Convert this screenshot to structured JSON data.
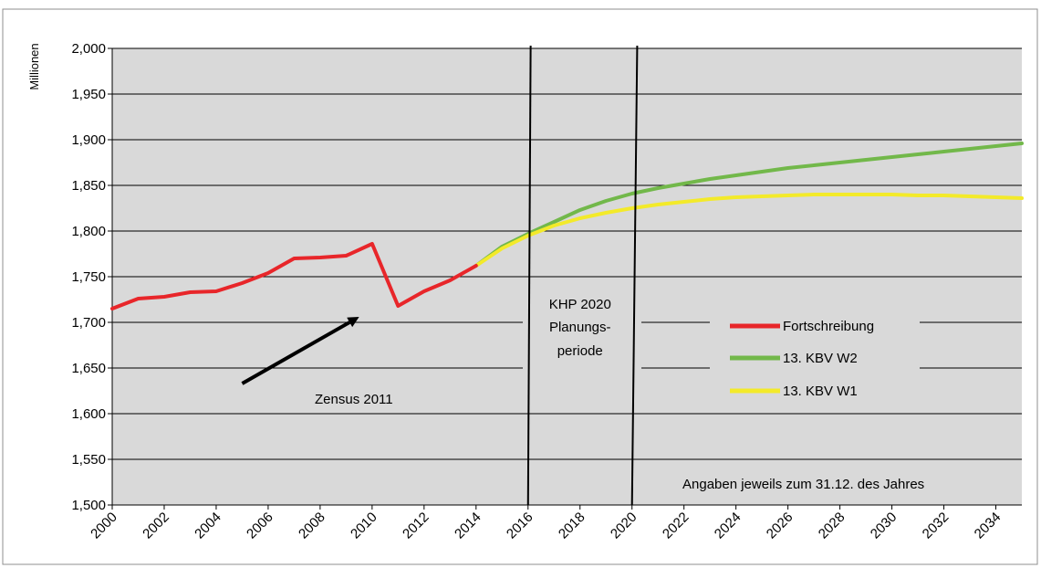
{
  "chart_data": {
    "type": "line",
    "title": "",
    "xlabel": "",
    "ylabel": "Millionen",
    "xlim": [
      2000,
      2035
    ],
    "ylim": [
      1.5,
      2.0
    ],
    "x_ticks": [
      "2000",
      "2002",
      "2004",
      "2006",
      "2008",
      "2010",
      "2012",
      "2014",
      "2016",
      "2018",
      "2020",
      "2022",
      "2024",
      "2026",
      "2028",
      "2030",
      "2032",
      "2034"
    ],
    "y_ticks": [
      "1,500",
      "1,550",
      "1,600",
      "1,650",
      "1,700",
      "1,750",
      "1,800",
      "1,850",
      "1,900",
      "1,950",
      "2,000"
    ],
    "grid": "horizontal",
    "legend_position": "right",
    "series": [
      {
        "name": "Fortschreibung",
        "color": "#e8262a",
        "x": [
          2000,
          2001,
          2002,
          2003,
          2004,
          2005,
          2006,
          2007,
          2008,
          2009,
          2010,
          2011,
          2012,
          2013,
          2014
        ],
        "values": [
          1.715,
          1.726,
          1.728,
          1.733,
          1.734,
          1.743,
          1.754,
          1.77,
          1.771,
          1.773,
          1.786,
          1.718,
          1.734,
          1.746,
          1.762
        ]
      },
      {
        "name": "13. KBV W2",
        "color": "#72b84a",
        "x": [
          2014,
          2015,
          2016,
          2017,
          2018,
          2019,
          2020,
          2021,
          2022,
          2023,
          2024,
          2025,
          2026,
          2027,
          2028,
          2029,
          2030,
          2031,
          2032,
          2033,
          2034,
          2035
        ],
        "values": [
          1.762,
          1.783,
          1.797,
          1.81,
          1.823,
          1.833,
          1.841,
          1.847,
          1.852,
          1.857,
          1.861,
          1.865,
          1.869,
          1.872,
          1.875,
          1.878,
          1.881,
          1.884,
          1.887,
          1.89,
          1.893,
          1.896
        ]
      },
      {
        "name": "13. KBV W1",
        "color": "#f3ea2a",
        "x": [
          2014,
          2015,
          2016,
          2017,
          2018,
          2019,
          2020,
          2021,
          2022,
          2023,
          2024,
          2025,
          2026,
          2027,
          2028,
          2029,
          2030,
          2031,
          2032,
          2033,
          2034,
          2035
        ],
        "values": [
          1.762,
          1.781,
          1.795,
          1.806,
          1.814,
          1.82,
          1.825,
          1.829,
          1.832,
          1.835,
          1.837,
          1.838,
          1.839,
          1.84,
          1.84,
          1.84,
          1.84,
          1.839,
          1.839,
          1.838,
          1.837,
          1.836
        ]
      }
    ],
    "vertical_markers": [
      {
        "x": 2016,
        "x_top": 2016.1
      },
      {
        "x": 2020,
        "x_top": 2020.2
      }
    ],
    "annotations": {
      "zensus": {
        "text": "Zensus 2011",
        "arrow_from": [
          2005,
          1.633
        ],
        "arrow_to": [
          2009.5,
          1.706
        ]
      },
      "khp_line1": "KHP 2020",
      "khp_line2": "Planungs-",
      "khp_line3": "periode",
      "footnote": "Angaben jeweils zum 31.12. des Jahres"
    }
  }
}
